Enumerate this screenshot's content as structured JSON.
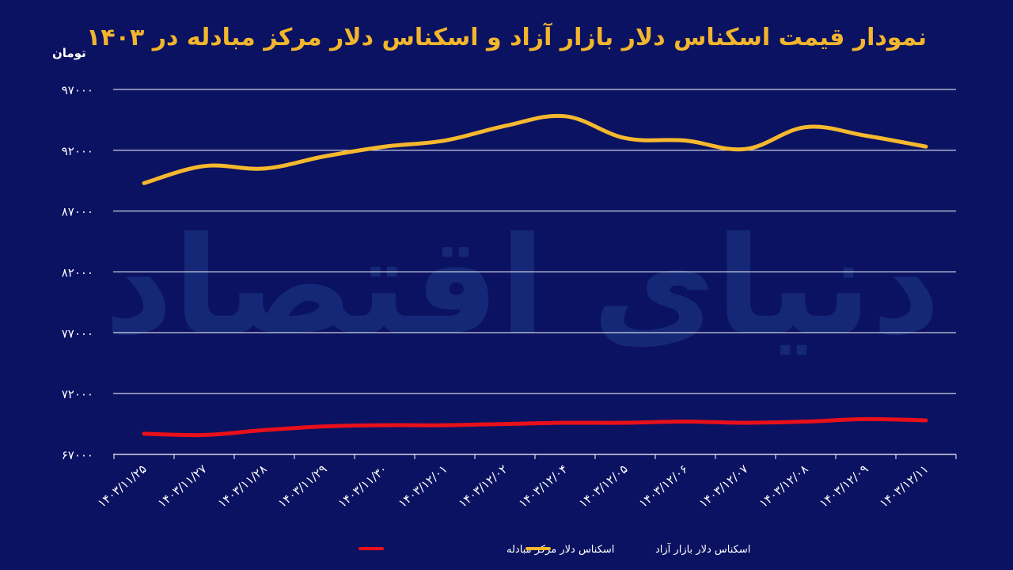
{
  "colors": {
    "background": "#0b1261",
    "title": "#f2b52d",
    "free_market": "#f5b82e",
    "exchange_center": "#e8101a",
    "grid": "#ffffff",
    "text": "#ffffff",
    "watermark": "#1c3a8a"
  },
  "chart_data": {
    "type": "line",
    "title": "نمودار قیمت اسکناس دلار بازار آزاد و اسکناس دلار مرکز مبادله در ۱۴۰۳",
    "ylabel": "تومان",
    "xlabel": "",
    "ylim": [
      67000,
      97000
    ],
    "yticks": [
      "۶۷۰۰۰",
      "۷۲۰۰۰",
      "۷۷۰۰۰",
      "۸۲۰۰۰",
      "۸۷۰۰۰",
      "۹۲۰۰۰",
      "۹۷۰۰۰"
    ],
    "categories": [
      "۱۴۰۳/۱۱/۲۵",
      "۱۴۰۳/۱۱/۲۷",
      "۱۴۰۳/۱۱/۲۸",
      "۱۴۰۳/۱۱/۲۹",
      "۱۴۰۳/۱۱/۳۰",
      "۱۴۰۳/۱۲/۰۱",
      "۱۴۰۳/۱۲/۰۲",
      "۱۴۰۳/۱۲/۰۴",
      "۱۴۰۳/۱۲/۰۵",
      "۱۴۰۳/۱۲/۰۶",
      "۱۴۰۳/۱۲/۰۷",
      "۱۴۰۳/۱۲/۰۸",
      "۱۴۰۳/۱۲/۰۹",
      "۱۴۰۳/۱۲/۱۱"
    ],
    "grid": true,
    "legend_position": "bottom",
    "series": [
      {
        "name": "اسکناس دلار بازار آزاد",
        "color": "#f5b82e",
        "values": [
          89300,
          90700,
          90500,
          91500,
          92300,
          92800,
          94000,
          94800,
          93000,
          92800,
          92100,
          93900,
          93200,
          92300
        ]
      },
      {
        "name": "اسکناس دلار مرکز مبادله",
        "color": "#e8101a",
        "values": [
          68700,
          68600,
          69000,
          69300,
          69400,
          69400,
          69500,
          69600,
          69600,
          69700,
          69600,
          69700,
          69900,
          69800
        ]
      }
    ]
  },
  "watermark": "دنیای اقتصاد"
}
